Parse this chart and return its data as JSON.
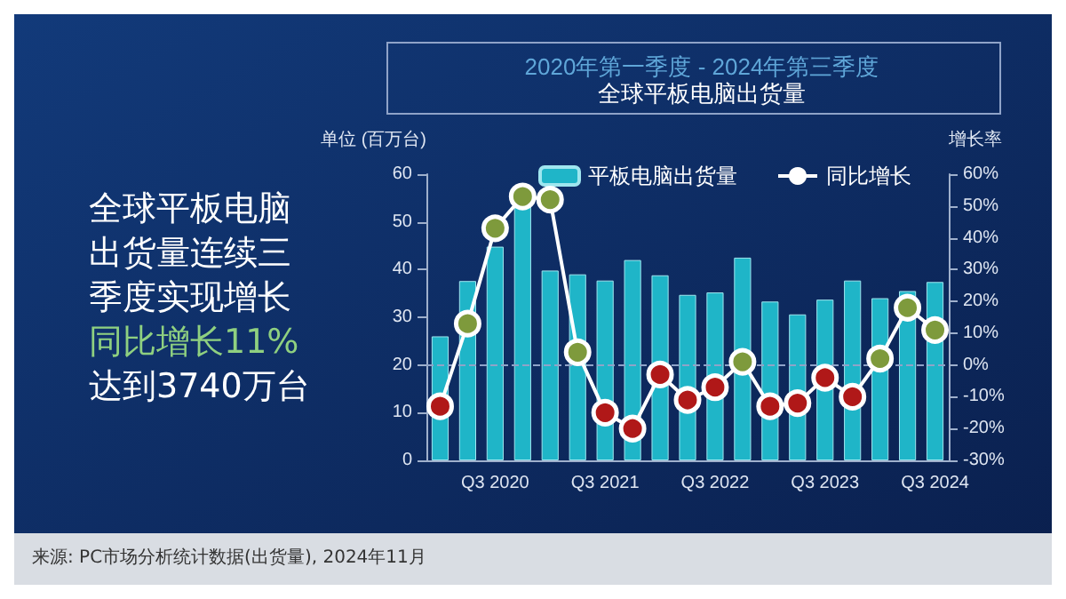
{
  "chart_data": {
    "type": "bar",
    "title": "全球平板电脑出货量",
    "subtitle": "2020年第一季度 - 2024年第三季度",
    "ylabel": "单位 (百万台)",
    "y2label": "增长率",
    "categories": [
      null,
      null,
      "Q3 2020",
      null,
      null,
      null,
      "Q3 2021",
      null,
      null,
      null,
      "Q3 2022",
      null,
      null,
      null,
      "Q3 2023",
      null,
      null,
      null,
      "Q3 2024"
    ],
    "series": [
      {
        "name": "平板电脑出货量",
        "color": "#1fb5c8",
        "values": [
          26,
          37.6,
          44.8,
          53.2,
          39.8,
          39,
          37.7,
          42,
          38.8,
          34.7,
          35.2,
          42.5,
          33.3,
          30.6,
          33.7,
          37.7,
          34,
          35.5,
          37.4
        ]
      },
      {
        "name": "同比增长",
        "type": "line",
        "axis": "y2",
        "color": "#ffffff",
        "colors": [
          "#b01818",
          "#7e9a3c",
          "#7e9a3c",
          "#7e9a3c",
          "#7e9a3c",
          "#7e9a3c",
          "#b01818",
          "#b01818",
          "#b01818",
          "#b01818",
          "#b01818",
          "#7e9a3c",
          "#b01818",
          "#b01818",
          "#b01818",
          "#b01818",
          "#7e9a3c",
          "#7e9a3c",
          "#7e9a3c"
        ],
        "values": [
          -13,
          13,
          43,
          53,
          52,
          4,
          -15,
          -20,
          -3,
          -11,
          -7,
          1,
          -13,
          -12,
          -4,
          -10,
          2,
          18,
          11
        ]
      }
    ],
    "ylim": [
      0,
      60
    ],
    "yticks": [
      0,
      10,
      20,
      30,
      40,
      50,
      60
    ],
    "y2lim": [
      -30,
      60
    ],
    "y2ticks": [
      {
        "value": -30,
        "label": "-30%"
      },
      {
        "value": -20,
        "label": "-20%"
      },
      {
        "value": -10,
        "label": "-10%"
      },
      {
        "value": 0,
        "label": "0%"
      },
      {
        "value": 10,
        "label": "10%"
      },
      {
        "value": 20,
        "label": "20%"
      },
      {
        "value": 30,
        "label": "30%"
      },
      {
        "value": 40,
        "label": "40%"
      },
      {
        "value": 50,
        "label": "50%"
      },
      {
        "value": 60,
        "label": "60%"
      }
    ],
    "ref_lines": [
      {
        "axis": "y2",
        "value": 0,
        "color": "#8fa3c8",
        "line_style": "dashed"
      }
    ],
    "marker": "circle",
    "grid": false,
    "legend": "top",
    "annotations": [
      "全球平板电脑",
      "出货量连续三",
      "季度实现增长",
      "同比增长11%",
      "达到3740万台",
      "来源: PC市场分析统计数据(出货量), 2024年11月"
    ]
  }
}
